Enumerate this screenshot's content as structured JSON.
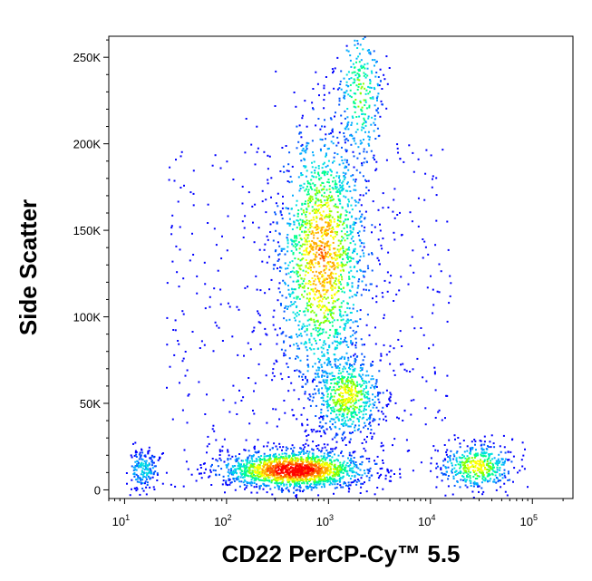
{
  "chart_data": {
    "type": "scatter",
    "title": "",
    "xlabel": "CD22 PerCP-Cy™ 5.5",
    "ylabel": "Side Scatter",
    "x_scale": "log",
    "xlim": [
      7,
      250000
    ],
    "ylim": [
      -5000,
      262144
    ],
    "x_ticks": [
      {
        "value": 10,
        "base": "10",
        "exp": "1"
      },
      {
        "value": 100,
        "base": "10",
        "exp": "2"
      },
      {
        "value": 1000,
        "base": "10",
        "exp": "3"
      },
      {
        "value": 10000,
        "base": "10",
        "exp": "4"
      },
      {
        "value": 100000,
        "base": "10",
        "exp": "5"
      }
    ],
    "y_ticks": [
      {
        "value": 0,
        "label": "0"
      },
      {
        "value": 50000,
        "label": "50K"
      },
      {
        "value": 100000,
        "label": "100K"
      },
      {
        "value": 150000,
        "label": "150K"
      },
      {
        "value": 200000,
        "label": "200K"
      },
      {
        "value": 250000,
        "label": "250K"
      }
    ],
    "colors": [
      "#0000ff",
      "#0055ff",
      "#00aaff",
      "#00e0e0",
      "#00ff88",
      "#88ff00",
      "#ffff00",
      "#ffaa00",
      "#ff5500",
      "#ff0000"
    ],
    "populations": [
      {
        "x": 450,
        "y": 12000,
        "sx_log": 0.35,
        "sy": 5500,
        "peak": 1.0
      },
      {
        "x": 850,
        "y": 135000,
        "sx_log": 0.22,
        "sy": 38000,
        "peak": 0.75
      },
      {
        "x": 1500,
        "y": 55000,
        "sx_log": 0.17,
        "sy": 12000,
        "peak": 0.6
      },
      {
        "x": 28000,
        "y": 14000,
        "sx_log": 0.18,
        "sy": 6500,
        "peak": 0.6
      },
      {
        "x": 2000,
        "y": 230000,
        "sx_log": 0.12,
        "sy": 22000,
        "peak": 0.45
      },
      {
        "x": 15,
        "y": 12000,
        "sx_log": 0.08,
        "sy": 6000,
        "peak": 0.3
      }
    ],
    "grid": false,
    "legend": "none"
  }
}
